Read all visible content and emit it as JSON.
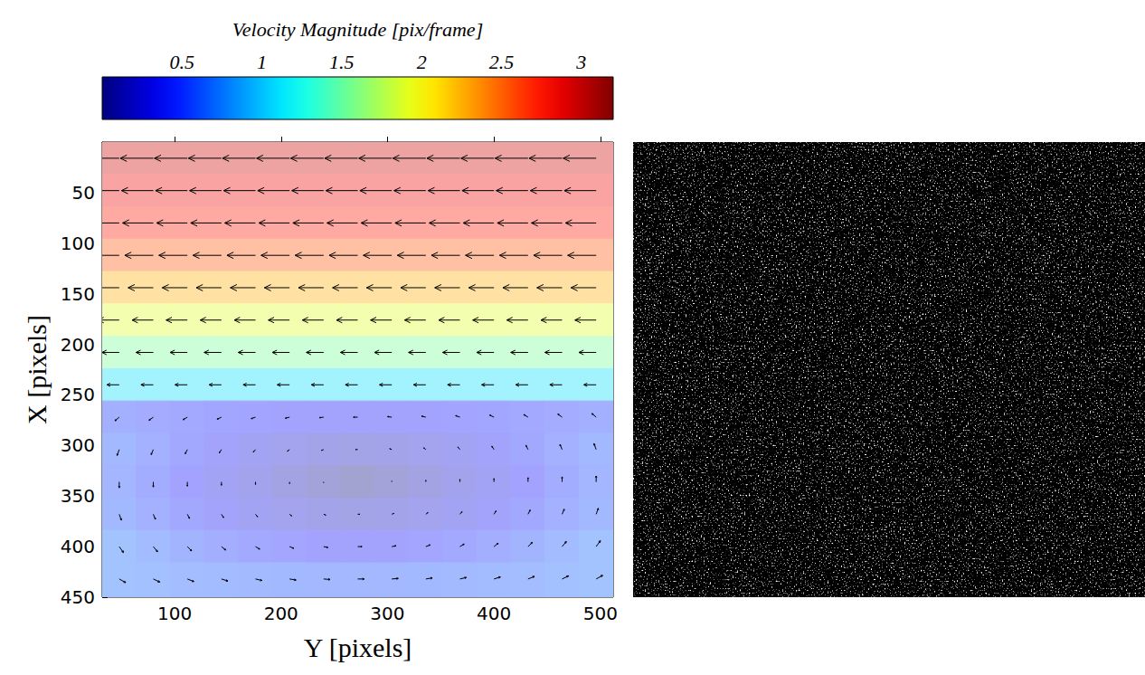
{
  "chart_data": [
    {
      "type": "quiver",
      "xlabel": "Y [pixels]",
      "ylabel": "X [pixels]",
      "xlim": [
        32,
        512
      ],
      "xticks": [
        100,
        200,
        300,
        400,
        500
      ],
      "ylim": [
        0,
        450
      ],
      "yticks": [
        50,
        100,
        150,
        200,
        250,
        300,
        350,
        400,
        450
      ],
      "x": [
        48,
        80,
        112,
        144,
        176,
        208,
        240,
        272,
        304,
        336,
        368,
        400,
        432,
        464,
        496
      ],
      "y": [
        16,
        48,
        80,
        112,
        144,
        176,
        208,
        240,
        272,
        304,
        336,
        368,
        400,
        432
      ],
      "u": [
        [
          -2.95,
          -2.95,
          -2.95,
          -2.95,
          -2.95,
          -2.95,
          -2.95,
          -2.95,
          -2.95,
          -2.95,
          -2.95,
          -2.95,
          -2.95,
          -2.95,
          -2.95
        ],
        [
          -2.85,
          -2.85,
          -2.85,
          -2.85,
          -2.85,
          -2.85,
          -2.85,
          -2.85,
          -2.85,
          -2.85,
          -2.85,
          -2.85,
          -2.85,
          -2.85,
          -2.85
        ],
        [
          -2.75,
          -2.75,
          -2.75,
          -2.75,
          -2.75,
          -2.75,
          -2.75,
          -2.75,
          -2.75,
          -2.75,
          -2.75,
          -2.75,
          -2.75,
          -2.75,
          -2.75
        ],
        [
          -2.55,
          -2.55,
          -2.55,
          -2.55,
          -2.55,
          -2.55,
          -2.55,
          -2.55,
          -2.55,
          -2.55,
          -2.55,
          -2.55,
          -2.55,
          -2.55,
          -2.55
        ],
        [
          -2.25,
          -2.25,
          -2.25,
          -2.25,
          -2.25,
          -2.25,
          -2.25,
          -2.25,
          -2.25,
          -2.25,
          -2.25,
          -2.25,
          -2.25,
          -2.25,
          -2.25
        ],
        [
          -1.9,
          -1.9,
          -1.9,
          -1.9,
          -1.9,
          -1.9,
          -1.9,
          -1.9,
          -1.9,
          -1.9,
          -1.9,
          -1.9,
          -1.9,
          -1.9,
          -1.9
        ],
        [
          -1.55,
          -1.55,
          -1.55,
          -1.55,
          -1.55,
          -1.55,
          -1.55,
          -1.55,
          -1.55,
          -1.55,
          -1.55,
          -1.55,
          -1.55,
          -1.55,
          -1.55
        ],
        [
          -1.1,
          -1.1,
          -1.1,
          -1.1,
          -1.1,
          -1.1,
          -1.1,
          -1.1,
          -1.1,
          -1.1,
          -1.1,
          -1.1,
          -1.1,
          -1.1,
          -1.1
        ],
        [
          -0.38,
          -0.38,
          -0.38,
          -0.38,
          -0.38,
          -0.38,
          -0.38,
          -0.38,
          -0.38,
          -0.38,
          -0.38,
          -0.38,
          -0.38,
          -0.38,
          -0.38
        ],
        [
          -0.19,
          -0.19,
          -0.19,
          -0.19,
          -0.19,
          -0.19,
          -0.19,
          -0.19,
          -0.19,
          -0.19,
          -0.19,
          -0.19,
          -0.19,
          -0.19,
          -0.19
        ],
        [
          0,
          0,
          0,
          0,
          0,
          0,
          0,
          0,
          0,
          0,
          0,
          0,
          0,
          0,
          0
        ],
        [
          0.19,
          0.19,
          0.19,
          0.19,
          0.19,
          0.19,
          0.19,
          0.19,
          0.19,
          0.19,
          0.19,
          0.19,
          0.19,
          0.19,
          0.19
        ],
        [
          0.38,
          0.38,
          0.38,
          0.38,
          0.38,
          0.38,
          0.38,
          0.38,
          0.38,
          0.38,
          0.38,
          0.38,
          0.38,
          0.38,
          0.38
        ],
        [
          0.58,
          0.58,
          0.58,
          0.58,
          0.58,
          0.58,
          0.58,
          0.58,
          0.58,
          0.58,
          0.58,
          0.58,
          0.58,
          0.58,
          0.58
        ]
      ],
      "v": [
        [
          0,
          0,
          0,
          0,
          0,
          0,
          0,
          0,
          0,
          0,
          0,
          0,
          0,
          0,
          0
        ],
        [
          0,
          0,
          0,
          0,
          0,
          0,
          0,
          0,
          0,
          0,
          0,
          0,
          0,
          0,
          0
        ],
        [
          0,
          0,
          0,
          0,
          0,
          0,
          0,
          0,
          0,
          0,
          0,
          0,
          0,
          0,
          0
        ],
        [
          0,
          0,
          0,
          0,
          0,
          0,
          0,
          0,
          0,
          0,
          0,
          0,
          0,
          0,
          0
        ],
        [
          0,
          0,
          0,
          0,
          0,
          0,
          0,
          0,
          0,
          0,
          0,
          0,
          0,
          0,
          0
        ],
        [
          0,
          0,
          0,
          0,
          0,
          0,
          0,
          0,
          0,
          0,
          0,
          0,
          0,
          0,
          0
        ],
        [
          0,
          0,
          0,
          0,
          0,
          0,
          0,
          0,
          0,
          0,
          0,
          0,
          0,
          0,
          0
        ],
        [
          0,
          0,
          0,
          0,
          0,
          0,
          0,
          0,
          0,
          0,
          0,
          0,
          0,
          0,
          0
        ],
        [
          0.34,
          0.29,
          0.24,
          0.19,
          0.14,
          0.1,
          0.05,
          0,
          -0.05,
          -0.1,
          -0.14,
          -0.19,
          -0.24,
          -0.29,
          -0.34
        ],
        [
          0.56,
          0.48,
          0.4,
          0.32,
          0.24,
          0.16,
          0.08,
          0,
          -0.08,
          -0.16,
          -0.24,
          -0.32,
          -0.4,
          -0.48,
          -0.56
        ],
        [
          0.56,
          0.48,
          0.4,
          0.32,
          0.24,
          0.16,
          0.08,
          0,
          -0.08,
          -0.16,
          -0.24,
          -0.32,
          -0.4,
          -0.48,
          -0.56
        ],
        [
          0.56,
          0.48,
          0.4,
          0.32,
          0.24,
          0.16,
          0.08,
          0,
          -0.08,
          -0.16,
          -0.24,
          -0.32,
          -0.4,
          -0.48,
          -0.56
        ],
        [
          0.56,
          0.48,
          0.4,
          0.32,
          0.24,
          0.16,
          0.08,
          0,
          -0.08,
          -0.16,
          -0.24,
          -0.32,
          -0.4,
          -0.48,
          -0.56
        ],
        [
          0.34,
          0.29,
          0.24,
          0.19,
          0.14,
          0.1,
          0.05,
          0,
          -0.05,
          -0.1,
          -0.14,
          -0.19,
          -0.24,
          -0.29,
          -0.34
        ]
      ],
      "colorbar": {
        "label": "Velocity Magnitude [pix/frame]",
        "range": [
          0,
          3.2
        ],
        "ticks": [
          0.5,
          1,
          1.5,
          2,
          2.5,
          3
        ]
      }
    },
    {
      "type": "image"
    }
  ]
}
